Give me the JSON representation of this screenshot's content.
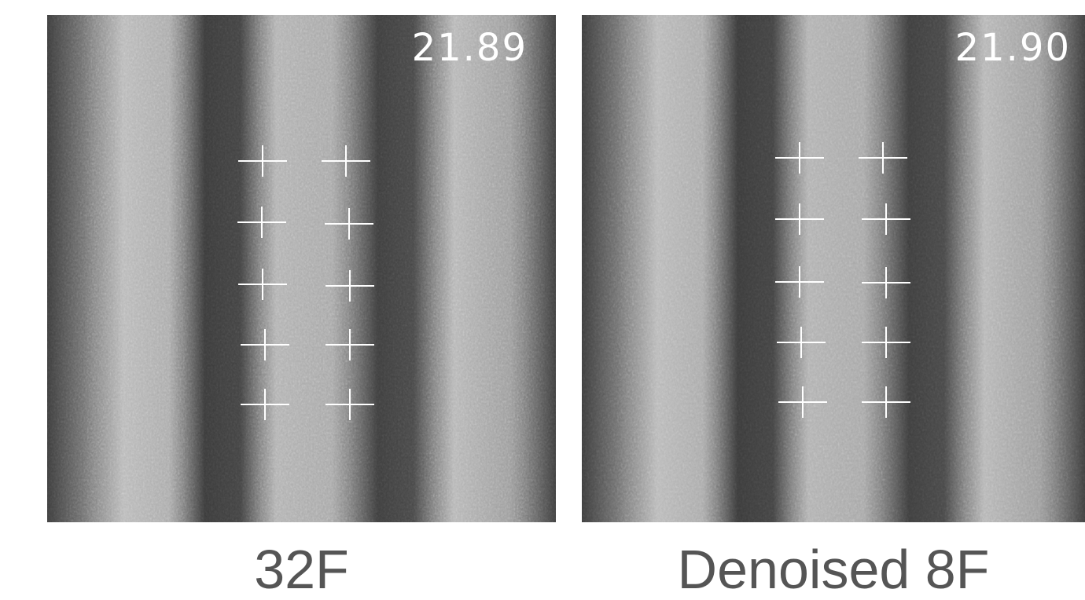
{
  "panels": [
    {
      "caption": "32F",
      "metric": "21.89"
    },
    {
      "caption": "Denoised 8F",
      "metric": "21.90"
    }
  ],
  "image": {
    "description_type": "grayscale-striped-texture",
    "marker_count_per_panel": 10
  }
}
